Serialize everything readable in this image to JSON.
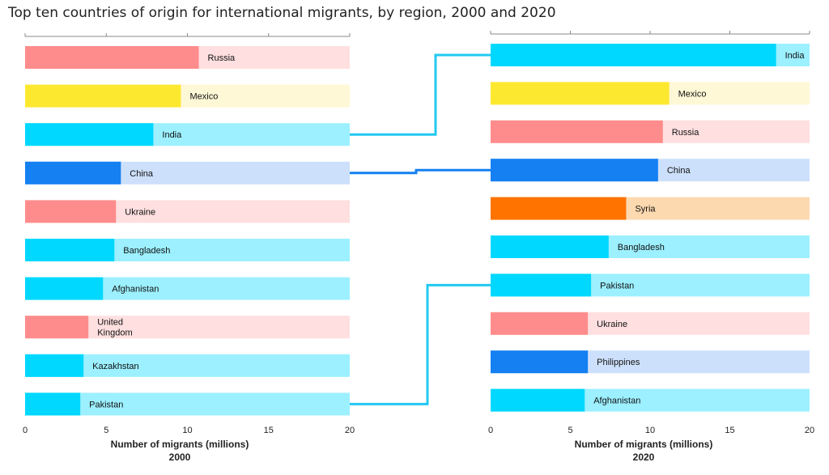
{
  "title": "Top ten countries of origin for international migrants, by region, 2000 and 2020",
  "colors": {
    "Europe": {
      "full": "#ff8c8c",
      "light": "#ffdfdf"
    },
    "LatinAmerica": {
      "full": "#fde830",
      "light": "#fff8d6"
    },
    "Asia": {
      "full": "#00d8ff",
      "light": "#9cf0ff"
    },
    "EastAsia": {
      "full": "#1480f2",
      "light": "#cde0fb"
    },
    "MiddleEast": {
      "full": "#ff7300",
      "light": "#fdd9b0"
    },
    "connector": "#22c8f0",
    "connector_dark": "#1480f2"
  },
  "chart_data": [
    {
      "type": "bar",
      "panel": "2000",
      "title": "2000",
      "xlabel": "Number of migrants (millions)",
      "xlim": [
        0,
        20
      ],
      "ticks": [
        "0",
        "5",
        "10",
        "15",
        "20"
      ],
      "categories": [
        "Russia",
        "Mexico",
        "India",
        "China",
        "Ukraine",
        "Bangladesh",
        "Afghanistan",
        "United Kingdom",
        "Kazakhstan",
        "Pakistan"
      ],
      "label_lines": [
        [
          "Russia"
        ],
        [
          "Mexico"
        ],
        [
          "India"
        ],
        [
          "China"
        ],
        [
          "Ukraine"
        ],
        [
          "Bangladesh"
        ],
        [
          "Afghanistan"
        ],
        [
          "United",
          "Kingdom"
        ],
        [
          "Kazakhstan"
        ],
        [
          "Pakistan"
        ]
      ],
      "region": [
        "Europe",
        "LatinAmerica",
        "Asia",
        "EastAsia",
        "Europe",
        "Asia",
        "Asia",
        "Europe",
        "Asia",
        "Asia"
      ],
      "values": [
        10.7,
        9.6,
        7.9,
        5.9,
        5.6,
        5.5,
        4.8,
        3.9,
        3.6,
        3.4
      ]
    },
    {
      "type": "bar",
      "panel": "2020",
      "title": "2020",
      "xlabel": "Number of migrants (millions)",
      "xlim": [
        0,
        20
      ],
      "ticks": [
        "0",
        "5",
        "10",
        "15",
        "20"
      ],
      "categories": [
        "India",
        "Mexico",
        "Russia",
        "China",
        "Syria",
        "Bangladesh",
        "Pakistan",
        "Ukraine",
        "Philippines",
        "Afghanistan"
      ],
      "label_lines": [
        [
          "India"
        ],
        [
          "Mexico"
        ],
        [
          "Russia"
        ],
        [
          "China"
        ],
        [
          "Syria"
        ],
        [
          "Bangladesh"
        ],
        [
          "Pakistan"
        ],
        [
          "Ukraine"
        ],
        [
          "Philippines"
        ],
        [
          "Afghanistan"
        ]
      ],
      "region": [
        "Asia",
        "LatinAmerica",
        "Europe",
        "EastAsia",
        "MiddleEast",
        "Asia",
        "Asia",
        "Europe",
        "EastAsia",
        "Asia"
      ],
      "values": [
        17.9,
        11.2,
        10.8,
        10.5,
        8.5,
        7.4,
        6.3,
        6.1,
        6.1,
        5.9
      ]
    }
  ],
  "connectors": [
    {
      "from": "India",
      "to": "India",
      "from_index": 2,
      "to_index": 0,
      "color_key": "connector"
    },
    {
      "from": "China",
      "to": "China",
      "from_index": 3,
      "to_index": 3,
      "color_key": "connector_dark"
    },
    {
      "from": "Pakistan",
      "to": "Pakistan",
      "from_index": 9,
      "to_index": 6,
      "color_key": "connector"
    }
  ]
}
